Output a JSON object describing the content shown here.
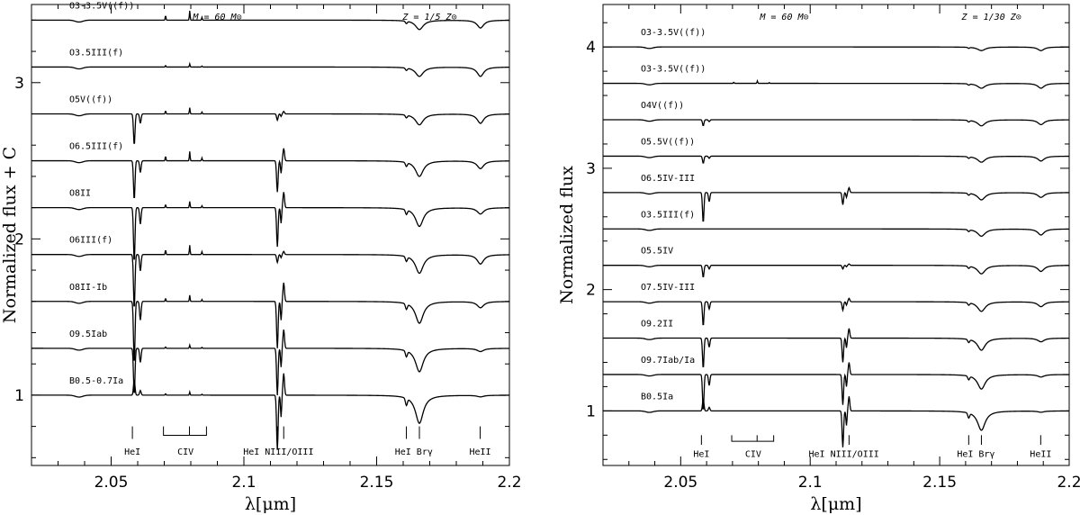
{
  "chart_data": [
    {
      "type": "line",
      "panel": "left",
      "header_mass": "M = 60 M⊙",
      "header_metallicity": "Z = 1/5 Z⊙",
      "xlabel": "λ[μm]",
      "ylabel": "Normalized flux + C",
      "xlim": [
        2.02,
        2.2
      ],
      "ylim": [
        0.55,
        3.5
      ],
      "x_ticks": [
        "2.05",
        "2.1",
        "2.15",
        "2.2"
      ],
      "y_ticks": [
        "1",
        "2",
        "3"
      ],
      "series": [
        {
          "name": "O3-3.5V((f))",
          "offset": 3.4
        },
        {
          "name": "O3.5III(f)",
          "offset": 3.1
        },
        {
          "name": "O5V((f))",
          "offset": 2.8
        },
        {
          "name": "O6.5III(f)",
          "offset": 2.5
        },
        {
          "name": "O8II",
          "offset": 2.2
        },
        {
          "name": "O6III(f)",
          "offset": 1.9
        },
        {
          "name": "O8II-Ib",
          "offset": 1.6
        },
        {
          "name": "O9.5Iab",
          "offset": 1.3
        },
        {
          "name": "B0.5-0.7Ia",
          "offset": 1.0
        }
      ],
      "line_ids": [
        {
          "label": "HeI",
          "x": 2.058
        },
        {
          "label": "CIV",
          "x": 2.078
        },
        {
          "label": "HeI NIII/OIII",
          "x": 2.113
        },
        {
          "label": "HeI Brγ",
          "x": 2.164
        },
        {
          "label": "HeII",
          "x": 2.189
        }
      ]
    },
    {
      "type": "line",
      "panel": "right",
      "header_mass": "M = 60 M⊙",
      "header_metallicity": "Z = 1/30 Z⊙",
      "xlabel": "λ[μm]",
      "ylabel": "Normalized flux",
      "xlim": [
        2.02,
        2.2
      ],
      "ylim": [
        0.55,
        4.35
      ],
      "x_ticks": [
        "2.05",
        "2.1",
        "2.15",
        "2.2"
      ],
      "y_ticks": [
        "1",
        "2",
        "3",
        "4"
      ],
      "series": [
        {
          "name": "O3-3.5V((f))",
          "offset": 4.0
        },
        {
          "name": "O3-3.5V((f))",
          "offset": 3.7
        },
        {
          "name": "O4V((f))",
          "offset": 3.4
        },
        {
          "name": "O5.5V((f))",
          "offset": 3.1
        },
        {
          "name": "O6.5IV-III",
          "offset": 2.8
        },
        {
          "name": "O3.5III(f)",
          "offset": 2.5
        },
        {
          "name": "O5.5IV",
          "offset": 2.2
        },
        {
          "name": "O7.5IV-III",
          "offset": 1.9
        },
        {
          "name": "O9.2II",
          "offset": 1.6
        },
        {
          "name": "O9.7Iab/Ia",
          "offset": 1.3
        },
        {
          "name": "B0.5Ia",
          "offset": 1.0
        }
      ],
      "line_ids": [
        {
          "label": "HeI",
          "x": 2.058
        },
        {
          "label": "CIV",
          "x": 2.078
        },
        {
          "label": "HeI NIII/OIII",
          "x": 2.113
        },
        {
          "label": "HeI Brγ",
          "x": 2.164
        },
        {
          "label": "HeII",
          "x": 2.189
        }
      ]
    }
  ]
}
